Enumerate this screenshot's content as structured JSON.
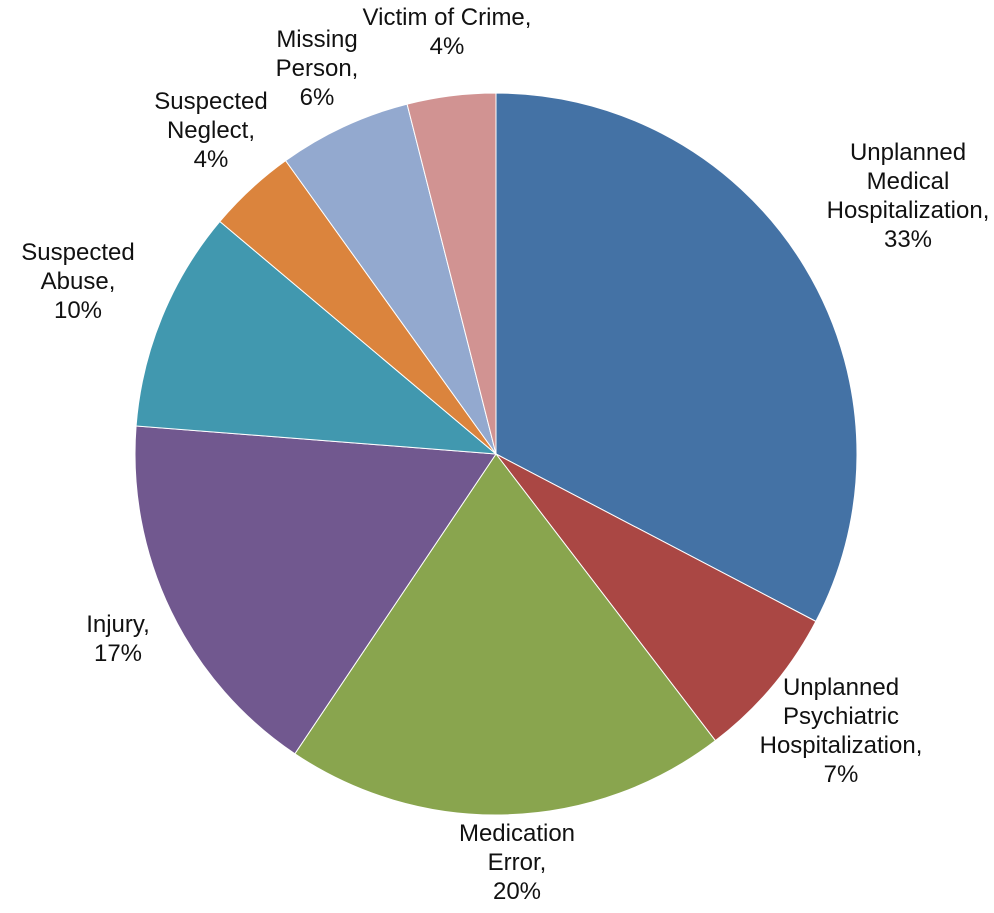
{
  "chart_data": {
    "type": "pie",
    "start_angle_deg": 0,
    "direction": "clockwise",
    "slices": [
      {
        "label_lines": [
          "Unplanned",
          "Medical",
          "Hospitalization,",
          "33%"
        ],
        "name": "Unplanned Medical Hospitalization",
        "value": 33,
        "color": "#4472A5"
      },
      {
        "label_lines": [
          "Unplanned",
          "Psychiatric",
          "Hospitalization,",
          "7%"
        ],
        "name": "Unplanned Psychiatric Hospitalization",
        "value": 7,
        "color": "#AA4744"
      },
      {
        "label_lines": [
          "Medication",
          "Error,",
          "20%"
        ],
        "name": "Medication Error",
        "value": 20,
        "color": "#89A54E"
      },
      {
        "label_lines": [
          "Injury,",
          "17%"
        ],
        "name": "Injury",
        "value": 17,
        "color": "#71588F"
      },
      {
        "label_lines": [
          "Suspected",
          "Abuse,",
          "10%"
        ],
        "name": "Suspected Abuse",
        "value": 10,
        "color": "#4198AF"
      },
      {
        "label_lines": [
          "Suspected",
          "Neglect,",
          "4%"
        ],
        "name": "Suspected Neglect",
        "value": 4,
        "color": "#DB843D"
      },
      {
        "label_lines": [
          "Missing",
          "Person,",
          "6%"
        ],
        "name": "Missing Person",
        "value": 6,
        "color": "#93A9CF"
      },
      {
        "label_lines": [
          "Victim of Crime,",
          "4%"
        ],
        "name": "Victim of Crime",
        "value": 4,
        "color": "#D19392"
      }
    ]
  }
}
